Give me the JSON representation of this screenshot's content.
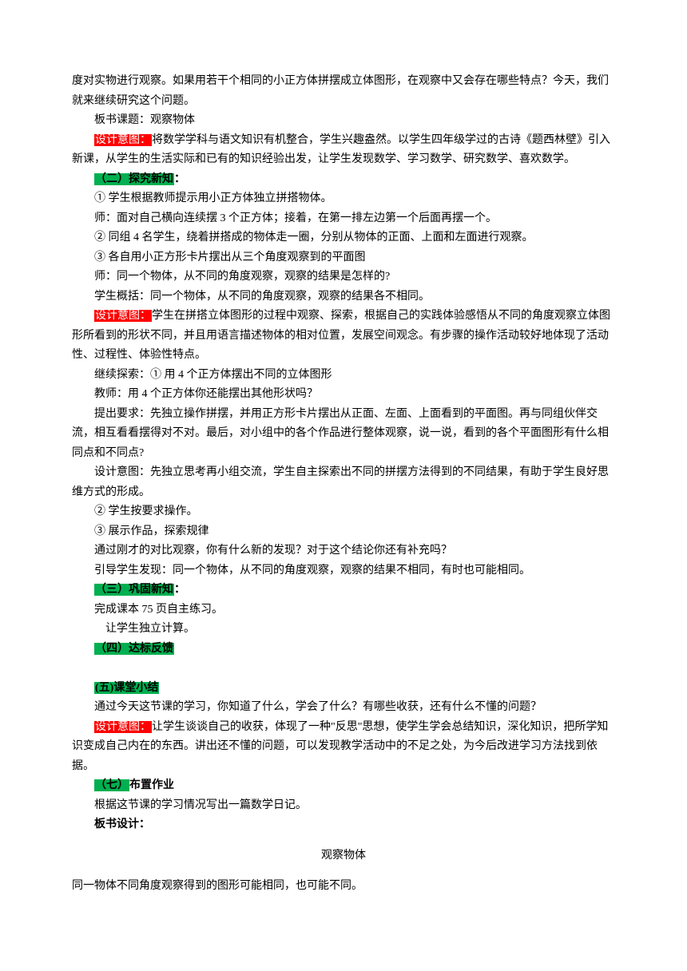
{
  "p1": "度对实物进行观察。如果用若干个相同的小正方体拼摆成立体图形，在观察中又会存在哪些特点？今天，我们就来继续研究这个问题。",
  "p2": "板书课题：观察物体",
  "p3_a": "设计意图：",
  "p3_b": "将数学学科与语文知识有机整合，学生兴趣盎然。以学生四年级学过的古诗《题西林壁》引入新课，从学生的生活实际和已有的知识经验出发，让学生发现数学、学习数学、研究数学、喜欢数学。",
  "p4_a": "（二）探究新知",
  "p4_b": "：",
  "p5": "① 学生根据教师提示用小正方体独立拼搭物体。",
  "p6": "师：面对自己横向连续摆 3 个正方体；接着，在第一排左边第一个后面再摆一个。",
  "p7": "② 同组 4 名学生，绕着拼搭成的物体走一圈，分别从物体的正面、上面和左面进行观察。",
  "p8": "③ 各自用小正方形卡片摆出从三个角度观察到的平面图",
  "p9": "师：同一个物体，从不同的角度观察，观察的结果是怎样的?",
  "p10": "学生概括：同一个物体，从不同的角度观察，观察的结果各不相同。",
  "p11_a": "设计意图：",
  "p11_b": "学生在拼搭立体图形的过程中观察、探索，根据自己的实践体验感悟从不同的角度观察立体图形所看到的形状不同，并且用语言描述物体的相对位置，发展空间观念。有步骤的操作活动较好地体现了活动性、过程性、体验性特点。",
  "p12": "继续探索：① 用 4 个正方体摆出不同的立体图形",
  "p13": "教师：用 4 个正方体你还能摆出其他形状吗？",
  "p14": "提出要求：先独立操作拼摆，并用正方形卡片摆出从正面、左面、上面看到的平面图。再与同组伙伴交流，相互看看摆得对不对。最后，对小组中的各个作品进行整体观察，说一说，看到的各个平面图形有什么相同点和不同点?",
  "p15": "设计意图：先独立思考再小组交流，学生自主探索出不同的拼摆方法得到的不同结果，有助于学生良好思维方式的形成。",
  "p16": "② 学生按要求操作。",
  "p17": "③ 展示作品，探索规律",
  "p18": "通过刚才的对比观察，你有什么新的发现？对于这个结论你还有补充吗？",
  "p19": "引导学生发现：同一个物体，从不同的角度观察，观察的结果不相同，有时也可能相同。",
  "p20_a": "（三）巩固新知",
  "p20_b": "：",
  "p21": "完成课本 75 页自主练习。",
  "p22": "让学生独立计算。",
  "p23": "（四）达标反馈",
  "p24": "(五)课堂小结",
  "p25": "通过今天这节课的学习，你知道了什么，学会了什么？有哪些收获，还有什么不懂的问题？",
  "p26_a": "设计意图：",
  "p26_b": "让学生谈谈自己的收获，体现了一种\"反思\"思想，使学生学会总结知识，深化知识，把所学知识变成自己内在的东西。讲出还不懂的问题，可以发现教学活动中的不足之处，为今后改进学习方法找到依据。",
  "p27_a": "（七）",
  "p27_b": "布置作业",
  "p28": "根据这节课的学习情况写出一篇数学日记。",
  "p29": "板书设计：",
  "p30": "观察物体",
  "p31": "同一物体不同角度观察得到的图形可能相同，也可能不同。",
  "styles": {
    "red_bg": "#ff0000",
    "green_bg": "#00b050",
    "text_color": "#000000",
    "page_bg": "#ffffff",
    "font_size_pt": 10.5,
    "line_height": 1.75
  }
}
